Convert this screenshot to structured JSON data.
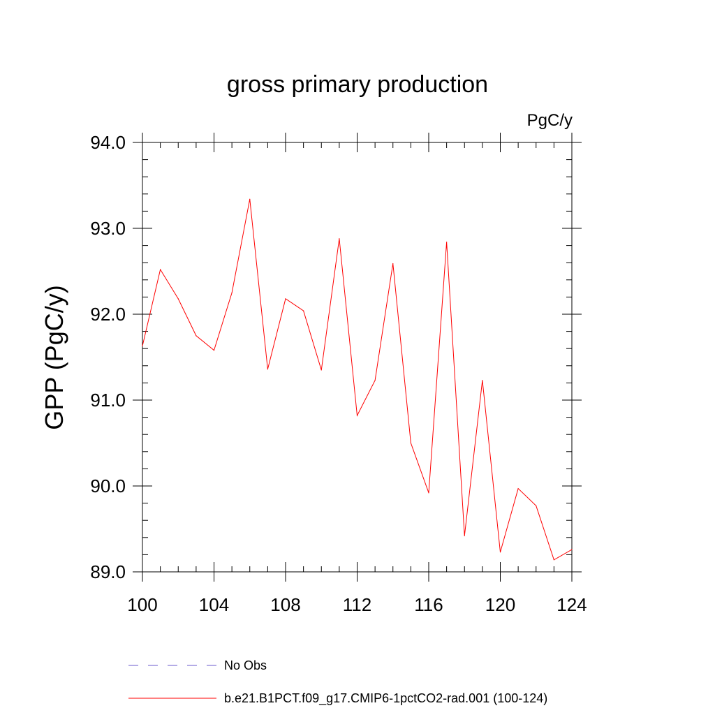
{
  "chart_data": {
    "type": "line",
    "title": "gross primary production",
    "units_label": "PgC/y",
    "ylabel": "GPP  (PgC/y)",
    "xlabel": "",
    "xlim": [
      100,
      124
    ],
    "ylim": [
      89.0,
      94.0
    ],
    "x_ticks": [
      "100",
      "104",
      "108",
      "112",
      "116",
      "120",
      "124"
    ],
    "y_ticks": [
      "89.0",
      "90.0",
      "91.0",
      "92.0",
      "93.0",
      "94.0"
    ],
    "x": [
      100,
      101,
      102,
      103,
      104,
      105,
      106,
      107,
      108,
      109,
      110,
      111,
      112,
      113,
      114,
      115,
      116,
      117,
      118,
      119,
      120,
      121,
      122,
      123,
      124
    ],
    "series": [
      {
        "name": "b.e21.B1PCT.f09_g17.CMIP6-1pctCO2-rad.001 (100-124)",
        "color": "#ff0000",
        "values": [
          91.63,
          92.52,
          92.18,
          91.75,
          91.58,
          92.25,
          93.34,
          91.36,
          92.18,
          92.04,
          91.35,
          92.88,
          90.82,
          91.23,
          92.59,
          90.5,
          89.92,
          92.84,
          89.42,
          91.23,
          89.23,
          89.97,
          89.77,
          89.14,
          89.26
        ]
      }
    ],
    "legend": {
      "placement": "bottom",
      "entries": [
        {
          "label": "No Obs",
          "color": "#6a5acd",
          "style": "dashed"
        },
        {
          "label": "b.e21.B1PCT.f09_g17.CMIP6-1pctCO2-rad.001 (100-124)",
          "color": "#ff0000",
          "style": "solid"
        }
      ]
    },
    "grid": false
  }
}
